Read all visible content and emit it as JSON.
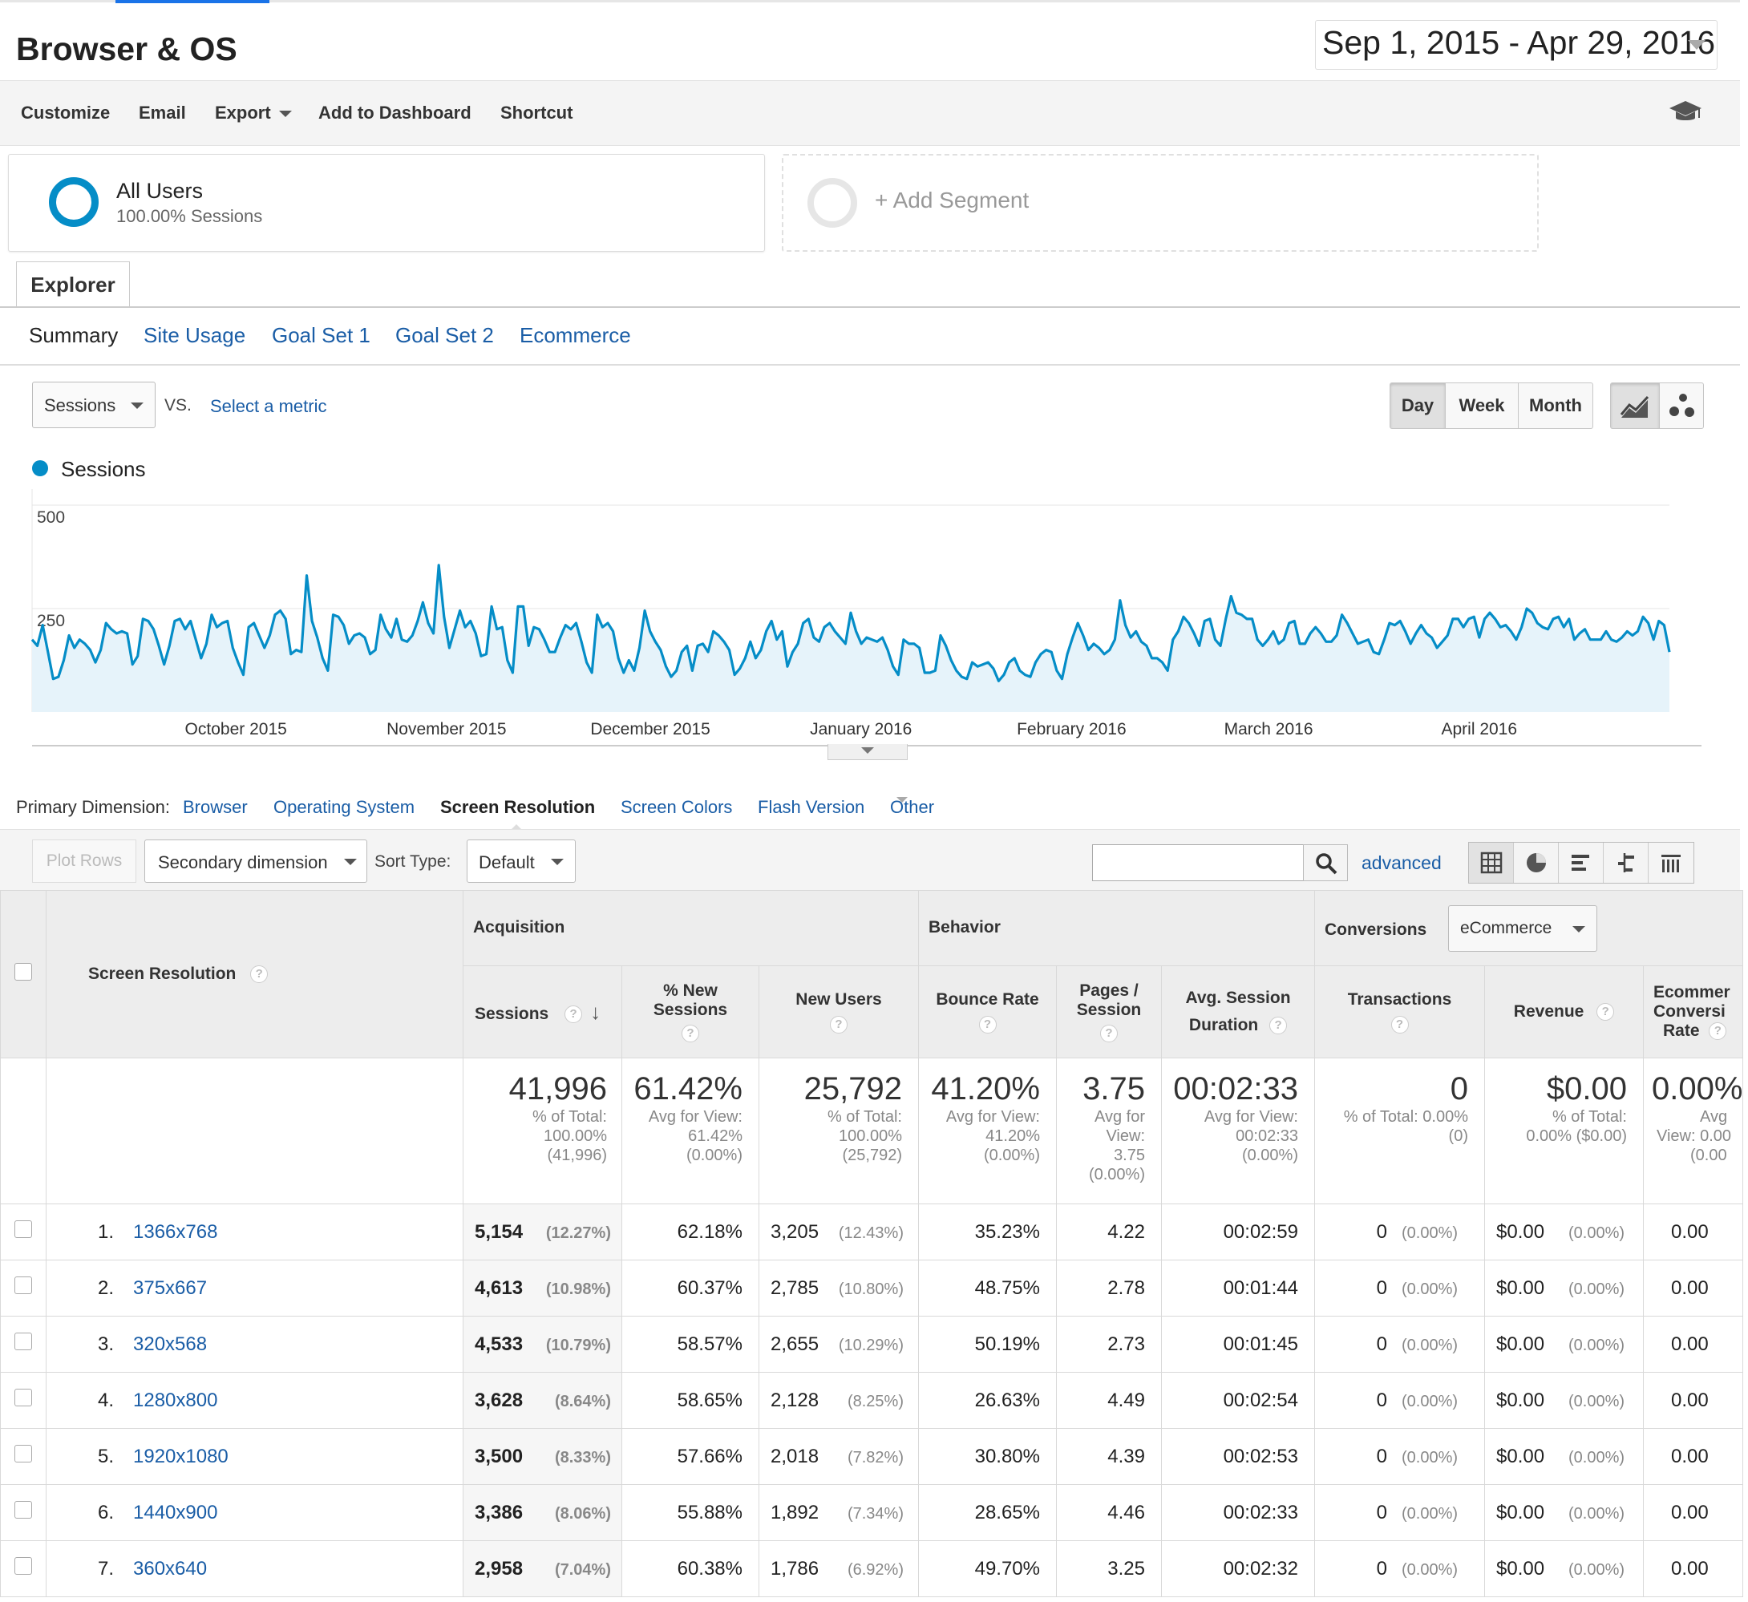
{
  "header": {
    "title": "Browser & OS",
    "date_range": "Sep 1, 2015 - Apr 29, 2016"
  },
  "toolbar": {
    "customize": "Customize",
    "email": "Email",
    "export": "Export",
    "add_to_dashboard": "Add to Dashboard",
    "shortcut": "Shortcut"
  },
  "segments": {
    "all_users": {
      "name": "All Users",
      "detail": "100.00% Sessions"
    },
    "add_segment": "+ Add Segment"
  },
  "tabs": {
    "explorer": "Explorer"
  },
  "subtabs": [
    "Summary",
    "Site Usage",
    "Goal Set 1",
    "Goal Set 2",
    "Ecommerce"
  ],
  "metric": {
    "selected": "Sessions",
    "vs": "VS.",
    "select_metric": "Select a metric"
  },
  "granularity": {
    "day": "Day",
    "week": "Week",
    "month": "Month"
  },
  "chart_data": {
    "type": "area",
    "legend": "Sessions",
    "series_color": "#058dc7",
    "yticks": [
      "500",
      "250"
    ],
    "ylim": [
      0,
      500
    ],
    "x_tick_labels": [
      "October 2015",
      "November 2015",
      "December 2015",
      "January 2016",
      "February 2016",
      "March 2016",
      "April 2016"
    ],
    "x_start": "2015-09-01",
    "x_end": "2016-04-29",
    "values": [
      175,
      160,
      210,
      145,
      80,
      85,
      125,
      185,
      155,
      175,
      165,
      150,
      120,
      150,
      215,
      200,
      190,
      195,
      190,
      115,
      135,
      225,
      220,
      200,
      160,
      115,
      160,
      220,
      225,
      200,
      220,
      175,
      130,
      165,
      235,
      205,
      215,
      220,
      155,
      120,
      90,
      205,
      215,
      185,
      155,
      185,
      235,
      245,
      225,
      140,
      150,
      145,
      330,
      220,
      180,
      130,
      100,
      235,
      230,
      210,
      165,
      185,
      190,
      180,
      140,
      150,
      235,
      200,
      180,
      225,
      175,
      170,
      185,
      220,
      265,
      215,
      190,
      355,
      230,
      155,
      200,
      245,
      205,
      220,
      190,
      135,
      140,
      255,
      200,
      205,
      125,
      95,
      255,
      255,
      160,
      205,
      200,
      175,
      145,
      145,
      180,
      210,
      200,
      215,
      170,
      120,
      95,
      235,
      205,
      215,
      195,
      130,
      95,
      125,
      100,
      155,
      245,
      195,
      170,
      150,
      110,
      85,
      100,
      145,
      160,
      100,
      160,
      165,
      145,
      195,
      185,
      170,
      150,
      90,
      105,
      130,
      170,
      130,
      150,
      195,
      220,
      175,
      195,
      110,
      145,
      165,
      215,
      225,
      180,
      170,
      205,
      215,
      195,
      180,
      165,
      240,
      195,
      165,
      180,
      175,
      170,
      180,
      150,
      110,
      90,
      175,
      165,
      165,
      155,
      95,
      95,
      100,
      185,
      160,
      125,
      100,
      85,
      80,
      120,
      110,
      115,
      120,
      105,
      75,
      90,
      120,
      130,
      100,
      90,
      85,
      120,
      140,
      150,
      145,
      100,
      80,
      140,
      180,
      215,
      185,
      150,
      165,
      155,
      140,
      150,
      175,
      270,
      210,
      180,
      195,
      170,
      160,
      130,
      130,
      120,
      100,
      175,
      195,
      230,
      215,
      190,
      160,
      220,
      225,
      175,
      160,
      225,
      280,
      240,
      235,
      225,
      225,
      175,
      160,
      175,
      195,
      165,
      175,
      215,
      220,
      165,
      165,
      190,
      205,
      190,
      170,
      170,
      185,
      235,
      215,
      190,
      165,
      170,
      175,
      145,
      140,
      175,
      215,
      210,
      220,
      195,
      165,
      190,
      210,
      190,
      180,
      155,
      170,
      185,
      225,
      225,
      205,
      225,
      230,
      180,
      225,
      240,
      225,
      205,
      210,
      195,
      175,
      205,
      250,
      240,
      215,
      205,
      200,
      225,
      230,
      205,
      225,
      175,
      190,
      200,
      175,
      175,
      175,
      195,
      175,
      170,
      180,
      195,
      185,
      195,
      230,
      215,
      175,
      220,
      210,
      145
    ],
    "sessions_total": "41,996"
  },
  "primary_dimension": {
    "label": "Primary Dimension:",
    "browser": "Browser",
    "os": "Operating System",
    "screen_res": "Screen Resolution",
    "screen_colors": "Screen Colors",
    "flash": "Flash Version",
    "other": "Other"
  },
  "controls": {
    "plot_rows": "Plot Rows",
    "secondary_dim": "Secondary dimension",
    "sort_type_label": "Sort Type:",
    "sort_type": "Default",
    "search_placeholder": "",
    "advanced": "advanced"
  },
  "table": {
    "col_dimension": "Screen Resolution",
    "groups": {
      "acquisition": "Acquisition",
      "behavior": "Behavior",
      "conversions": "Conversions",
      "conversions_select": "eCommerce"
    },
    "headers": {
      "sessions": "Sessions",
      "pct_new_1": "% New",
      "pct_new_2": "Sessions",
      "new_users": "New Users",
      "bounce": "Bounce Rate",
      "pps_1": "Pages /",
      "pps_2": "Session",
      "dur_1": "Avg. Session",
      "dur_2": "Duration",
      "transactions": "Transactions",
      "revenue": "Revenue",
      "conv_1": "Ecommer",
      "conv_2": "Conversi",
      "conv_3": "Rate"
    },
    "totals": {
      "sessions": "41,996",
      "sessions_sub": [
        "% of Total:",
        "100.00%",
        "(41,996)"
      ],
      "pct_new": "61.42%",
      "pct_new_sub": [
        "Avg for View:",
        "61.42%",
        "(0.00%)"
      ],
      "new_users": "25,792",
      "new_users_sub": [
        "% of Total:",
        "100.00%",
        "(25,792)"
      ],
      "bounce": "41.20%",
      "bounce_sub": [
        "Avg for View:",
        "41.20%",
        "(0.00%)"
      ],
      "pps": "3.75",
      "pps_sub": [
        "Avg for",
        "View:",
        "3.75",
        "(0.00%)"
      ],
      "dur": "00:02:33",
      "dur_sub": [
        "Avg for View:",
        "00:02:33",
        "(0.00%)"
      ],
      "transactions": "0",
      "transactions_sub": [
        "% of Total: 0.00%",
        "(0)"
      ],
      "revenue": "$0.00",
      "revenue_sub": [
        "% of Total:",
        "0.00% ($0.00)"
      ],
      "conv": "0.00%",
      "conv_sub": [
        "Avg",
        "View: 0.00",
        "(0.00"
      ]
    },
    "rows": [
      {
        "n": "1.",
        "res": "1366x768",
        "sessions": "5,154",
        "s_pct": "(12.27%)",
        "pct_new": "62.18%",
        "new_users": "3,205",
        "nu_pct": "(12.43%)",
        "bounce": "35.23%",
        "pps": "4.22",
        "dur": "00:02:59",
        "tx": "0",
        "tx_pct": "(0.00%)",
        "rev": "$0.00",
        "rev_pct": "(0.00%)",
        "conv": "0.00"
      },
      {
        "n": "2.",
        "res": "375x667",
        "sessions": "4,613",
        "s_pct": "(10.98%)",
        "pct_new": "60.37%",
        "new_users": "2,785",
        "nu_pct": "(10.80%)",
        "bounce": "48.75%",
        "pps": "2.78",
        "dur": "00:01:44",
        "tx": "0",
        "tx_pct": "(0.00%)",
        "rev": "$0.00",
        "rev_pct": "(0.00%)",
        "conv": "0.00"
      },
      {
        "n": "3.",
        "res": "320x568",
        "sessions": "4,533",
        "s_pct": "(10.79%)",
        "pct_new": "58.57%",
        "new_users": "2,655",
        "nu_pct": "(10.29%)",
        "bounce": "50.19%",
        "pps": "2.73",
        "dur": "00:01:45",
        "tx": "0",
        "tx_pct": "(0.00%)",
        "rev": "$0.00",
        "rev_pct": "(0.00%)",
        "conv": "0.00"
      },
      {
        "n": "4.",
        "res": "1280x800",
        "sessions": "3,628",
        "s_pct": "(8.64%)",
        "pct_new": "58.65%",
        "new_users": "2,128",
        "nu_pct": "(8.25%)",
        "bounce": "26.63%",
        "pps": "4.49",
        "dur": "00:02:54",
        "tx": "0",
        "tx_pct": "(0.00%)",
        "rev": "$0.00",
        "rev_pct": "(0.00%)",
        "conv": "0.00"
      },
      {
        "n": "5.",
        "res": "1920x1080",
        "sessions": "3,500",
        "s_pct": "(8.33%)",
        "pct_new": "57.66%",
        "new_users": "2,018",
        "nu_pct": "(7.82%)",
        "bounce": "30.80%",
        "pps": "4.39",
        "dur": "00:02:53",
        "tx": "0",
        "tx_pct": "(0.00%)",
        "rev": "$0.00",
        "rev_pct": "(0.00%)",
        "conv": "0.00"
      },
      {
        "n": "6.",
        "res": "1440x900",
        "sessions": "3,386",
        "s_pct": "(8.06%)",
        "pct_new": "55.88%",
        "new_users": "1,892",
        "nu_pct": "(7.34%)",
        "bounce": "28.65%",
        "pps": "4.46",
        "dur": "00:02:33",
        "tx": "0",
        "tx_pct": "(0.00%)",
        "rev": "$0.00",
        "rev_pct": "(0.00%)",
        "conv": "0.00"
      },
      {
        "n": "7.",
        "res": "360x640",
        "sessions": "2,958",
        "s_pct": "(7.04%)",
        "pct_new": "60.38%",
        "new_users": "1,786",
        "nu_pct": "(6.92%)",
        "bounce": "49.70%",
        "pps": "3.25",
        "dur": "00:02:32",
        "tx": "0",
        "tx_pct": "(0.00%)",
        "rev": "$0.00",
        "rev_pct": "(0.00%)",
        "conv": "0.00"
      }
    ]
  }
}
